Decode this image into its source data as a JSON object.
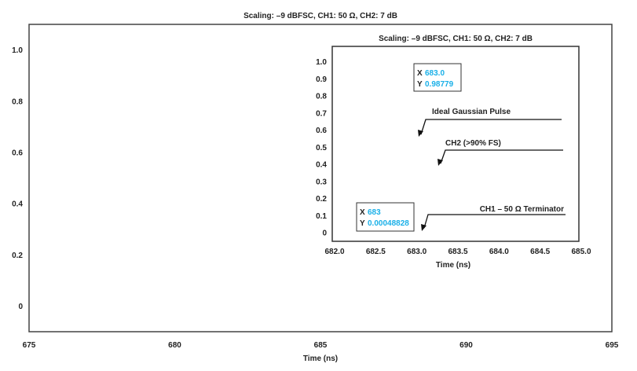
{
  "chart_data": [
    {
      "type": "line",
      "title": "Scaling: –9 dBFSC, CH1: 50 Ω, CH2: 7 dB",
      "xlabel": "Time (ns)",
      "ylabel": "",
      "xlim": [
        675,
        695
      ],
      "ylim": [
        -0.1,
        1.1
      ],
      "xticks": [
        "675",
        "680",
        "685",
        "690",
        "695"
      ],
      "yticks": [
        "0",
        "0.2",
        "0.4",
        "0.6",
        "0.8",
        "1.0"
      ],
      "grid": false,
      "series": []
    },
    {
      "type": "line",
      "title": "Scaling: –9 dBFSC, CH1: 50 Ω, CH2: 7 dB",
      "xlabel": "Time (ns)",
      "ylabel": "",
      "xlim": [
        682.0,
        685.0
      ],
      "ylim": [
        -0.05,
        1.09
      ],
      "xticks": [
        "682.0",
        "682.5",
        "683.0",
        "683.5",
        "684.0",
        "684.5",
        "685.0"
      ],
      "yticks": [
        "0",
        "0.1",
        "0.2",
        "0.3",
        "0.4",
        "0.5",
        "0.6",
        "0.7",
        "0.8",
        "0.9",
        "1.0"
      ],
      "grid": false,
      "series": [],
      "annotations": [
        {
          "label": "Ideal Gaussian Pulse"
        },
        {
          "label": "CH2 (>90% FS)"
        },
        {
          "label": "CH1 – 50 Ω Terminator"
        }
      ],
      "cursors": [
        {
          "x_label": "X",
          "x": "683.0",
          "y_label": "Y",
          "y": "0.98779"
        },
        {
          "x_label": "X",
          "x": "683",
          "y_label": "Y",
          "y": "0.00048828"
        }
      ],
      "value_color": "#1ab0e8"
    }
  ]
}
